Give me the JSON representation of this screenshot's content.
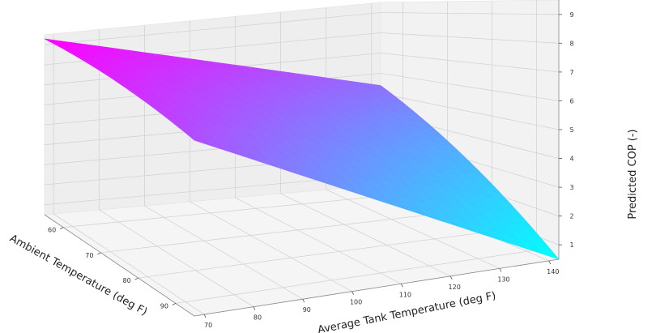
{
  "chart_data": {
    "type": "surface",
    "title": "",
    "xlabel": "Ambient Temperature (deg F)",
    "ylabel": "Average Tank Temperature (deg F)",
    "zlabel": "Predicted COP (-)",
    "x_ticks": [
      60,
      70,
      80,
      90
    ],
    "y_ticks": [
      70,
      80,
      90,
      100,
      110,
      120,
      130,
      140
    ],
    "z_ticks": [
      1,
      2,
      3,
      4,
      5,
      6,
      7,
      8,
      9
    ],
    "xlim": [
      55,
      95
    ],
    "ylim": [
      68,
      142
    ],
    "zlim": [
      0.5,
      9.5
    ],
    "colormap": [
      "#ff00ff",
      "#00ffff"
    ],
    "grid": true,
    "surface_corners": [
      {
        "x": 55,
        "y": 68,
        "z": 9.3
      },
      {
        "x": 95,
        "y": 68,
        "z": 6.6
      },
      {
        "x": 55,
        "y": 142,
        "z": 5.4
      },
      {
        "x": 95,
        "y": 142,
        "z": 0.5
      }
    ]
  }
}
